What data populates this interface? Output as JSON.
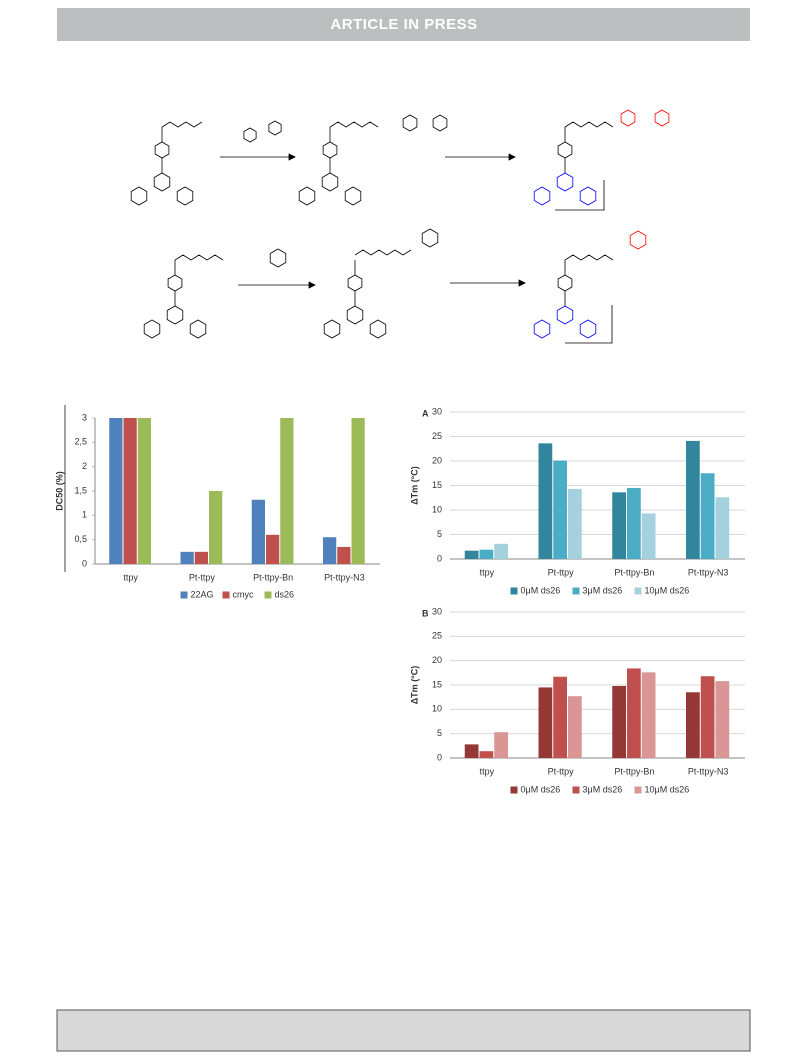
{
  "header": {
    "title": "ARTICLE IN PRESS"
  },
  "chart_data": [
    {
      "type": "bar",
      "y_label": "DC50 (%)",
      "categories": [
        "ttpy",
        "Pt-ttpy",
        "Pt-ttpy-Bn",
        "Pt-ttpy-N3"
      ],
      "series": [
        {
          "name": "22AG",
          "color": "#4f81bd",
          "values": [
            3,
            0.25,
            1.32,
            0.55
          ]
        },
        {
          "name": "cmyc",
          "color": "#c0504d",
          "values": [
            3,
            0.25,
            0.6,
            0.35
          ]
        },
        {
          "name": "ds26",
          "color": "#9bbb59",
          "values": [
            3,
            1.5,
            3,
            3
          ]
        }
      ],
      "ylim": [
        0,
        3
      ],
      "yticks": [
        0,
        {
          "value": 0.5,
          "label": "0,5"
        },
        1,
        {
          "value": 1.5,
          "label": "1,5"
        },
        2,
        {
          "value": 2.5,
          "label": "2,5"
        },
        3
      ],
      "grid": false,
      "legend": "bottom"
    },
    {
      "type": "bar",
      "panel_label": "A",
      "y_label": "ΔTm (°C)",
      "categories": [
        "ttpy",
        "Pt-ttpy",
        "Pt-ttpy-Bn",
        "Pt-ttpy-N3"
      ],
      "series": [
        {
          "name": "0μM ds26",
          "color": "#31859c",
          "values": [
            1.7,
            23.6,
            13.6,
            24.1
          ]
        },
        {
          "name": "3μM ds26",
          "color": "#4bacc6",
          "values": [
            1.9,
            20.1,
            14.5,
            17.5
          ]
        },
        {
          "name": "10μM ds26",
          "color": "#a5d0de",
          "values": [
            3.1,
            14.3,
            9.3,
            12.6
          ]
        }
      ],
      "ylim": [
        0,
        30
      ],
      "yticks": [
        0,
        5,
        10,
        15,
        20,
        25,
        30
      ],
      "grid": true,
      "legend": "bottom"
    },
    {
      "type": "bar",
      "panel_label": "B",
      "y_label": "ΔTm (°C)",
      "categories": [
        "ttpy",
        "Pt-ttpy",
        "Pt-ttpy-Bn",
        "Pt-ttpy-N3"
      ],
      "series": [
        {
          "name": "0μM ds26",
          "color": "#953735",
          "values": [
            2.8,
            14.5,
            14.8,
            13.5
          ]
        },
        {
          "name": "3μM ds26",
          "color": "#c0504d",
          "values": [
            1.4,
            16.7,
            18.4,
            16.8
          ]
        },
        {
          "name": "10μM ds26",
          "color": "#d99694",
          "values": [
            5.3,
            12.7,
            17.6,
            15.8
          ]
        }
      ],
      "ylim": [
        0,
        30
      ],
      "yticks": [
        0,
        5,
        10,
        15,
        20,
        25,
        30
      ],
      "grid": true,
      "legend": "bottom"
    }
  ]
}
